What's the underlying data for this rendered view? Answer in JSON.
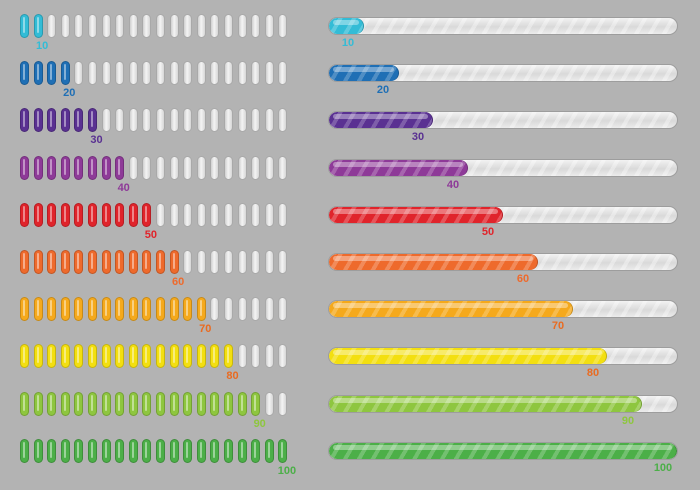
{
  "bars": [
    {
      "value": 10,
      "label": "10",
      "fraction": 0.1,
      "color": "#33bcd6",
      "label_color": "#33bcd6"
    },
    {
      "value": 20,
      "label": "20",
      "fraction": 0.2,
      "color": "#1f6fb5",
      "label_color": "#1f6fb5"
    },
    {
      "value": 30,
      "label": "30",
      "fraction": 0.3,
      "color": "#5a3192",
      "label_color": "#5a3192"
    },
    {
      "value": 40,
      "label": "40",
      "fraction": 0.4,
      "color": "#8e3a98",
      "label_color": "#8e3a98"
    },
    {
      "value": 50,
      "label": "50",
      "fraction": 0.5,
      "color": "#e0242b",
      "label_color": "#e0242b"
    },
    {
      "value": 60,
      "label": "60",
      "fraction": 0.6,
      "color": "#ee6a2c",
      "label_color": "#ee6a2c"
    },
    {
      "value": 70,
      "label": "70",
      "fraction": 0.7,
      "color": "#f5a91c",
      "label_color": "#e96b21"
    },
    {
      "value": 80,
      "label": "80",
      "fraction": 0.8,
      "color": "#f3df10",
      "label_color": "#e96b21"
    },
    {
      "value": 90,
      "label": "90",
      "fraction": 0.9,
      "color": "#8ec63f",
      "label_color": "#8ec63f"
    },
    {
      "value": 100,
      "label": "100",
      "fraction": 1.0,
      "color": "#4caf48",
      "label_color": "#4caf48"
    }
  ],
  "segment_count": 20,
  "track_color": "#dddddd"
}
